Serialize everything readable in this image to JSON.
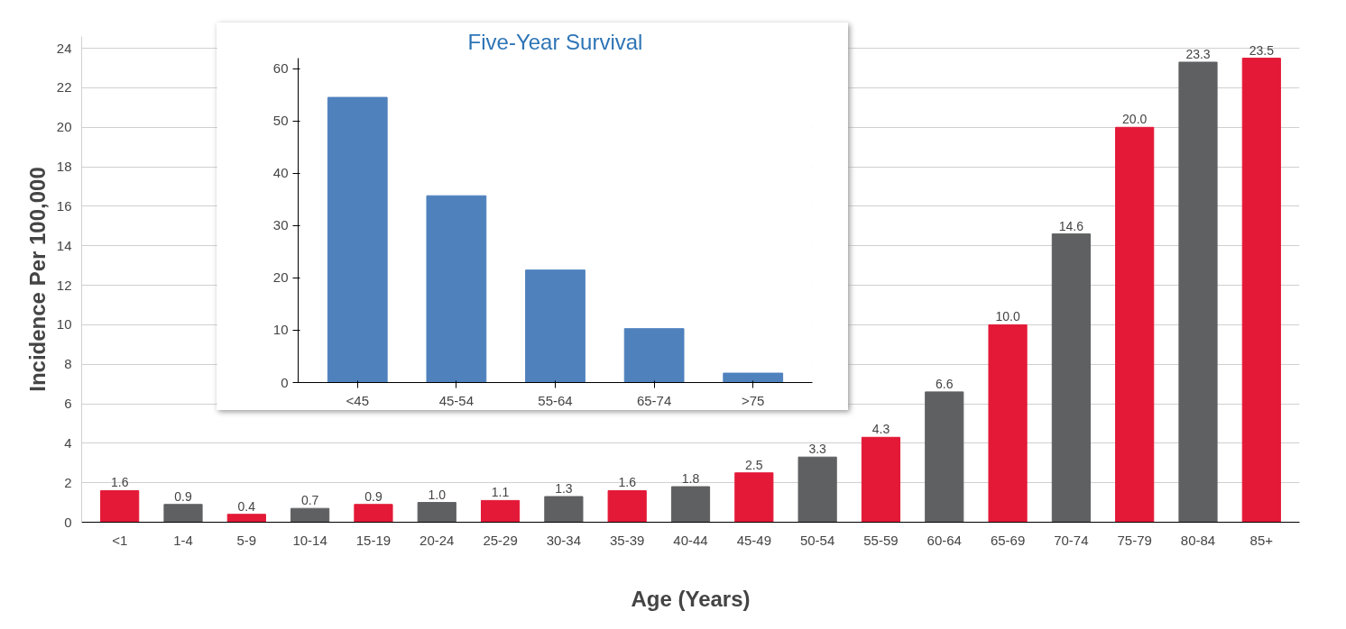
{
  "chart_data": [
    {
      "type": "bar",
      "xlabel": "Age (Years)",
      "ylabel": "Incidence Per 100,000",
      "categories": [
        "<1",
        "1-4",
        "5-9",
        "10-14",
        "15-19",
        "20-24",
        "25-29",
        "30-34",
        "35-39",
        "40-44",
        "45-49",
        "50-54",
        "55-59",
        "60-64",
        "65-69",
        "70-74",
        "75-79",
        "80-84",
        "85+"
      ],
      "values": [
        1.6,
        0.9,
        0.4,
        0.7,
        0.9,
        1.0,
        1.1,
        1.3,
        1.6,
        1.8,
        2.5,
        3.3,
        4.3,
        6.6,
        10.0,
        14.6,
        20.0,
        23.3,
        23.5
      ],
      "value_labels": [
        "1.6",
        "0.9",
        "0.4",
        "0.7",
        "0.9",
        "1.0",
        "1.1",
        "1.3",
        "1.6",
        "1.8",
        "2.5",
        "3.3",
        "4.3",
        "6.6",
        "10.0",
        "14.6",
        "20.0",
        "23.3",
        "23.5"
      ],
      "colors": [
        "#e31937",
        "#5f6062",
        "#e31937",
        "#5f6062",
        "#e31937",
        "#5f6062",
        "#e31937",
        "#5f6062",
        "#e31937",
        "#5f6062",
        "#e31937",
        "#5f6062",
        "#e31937",
        "#5f6062",
        "#e31937",
        "#5f6062",
        "#e31937",
        "#5f6062",
        "#e31937"
      ],
      "ylim": [
        0,
        24.6
      ],
      "yticks": [
        0,
        2,
        4,
        6,
        8,
        10,
        12,
        14,
        16,
        18,
        20,
        22,
        24
      ],
      "grid": "y"
    },
    {
      "type": "bar",
      "title": "Five-Year Survival",
      "categories": [
        "<45",
        "45-54",
        "55-64",
        "65-74",
        ">75"
      ],
      "values": [
        54.5,
        35.7,
        21.5,
        10.3,
        1.8
      ],
      "color": "#4f81bd",
      "ylim": [
        0,
        62
      ],
      "yticks": [
        0,
        10,
        20,
        30,
        40,
        50,
        60
      ],
      "grid": false
    }
  ]
}
